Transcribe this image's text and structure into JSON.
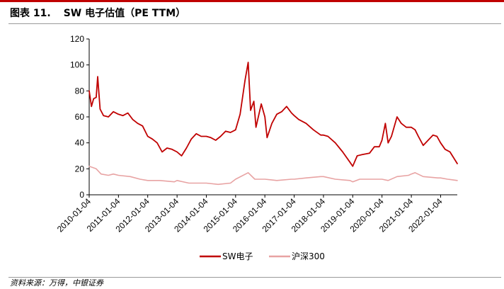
{
  "figure": {
    "label": "图表 11.",
    "title": "SW 电子估值（PE TTM）",
    "source": "资料来源：万得，中银证券"
  },
  "colors": {
    "accent": "#c00000",
    "sw_series": "#c00000",
    "hs300_series": "#e8a3a3",
    "axis": "#000000"
  },
  "chart_data": {
    "type": "line",
    "title": "SW 电子估值（PE TTM）",
    "xlabel": "",
    "ylabel": "",
    "ylim": [
      0,
      120
    ],
    "yticks": [
      0,
      20,
      40,
      60,
      80,
      100,
      120
    ],
    "xlim": [
      "2010-01-04",
      "2022-07-31"
    ],
    "xticks": [
      "2010-01-04",
      "2011-01-04",
      "2012-01-04",
      "2013-01-04",
      "2014-01-04",
      "2015-01-04",
      "2016-01-04",
      "2017-01-04",
      "2018-01-04",
      "2019-01-04",
      "2020-01-04",
      "2021-01-04",
      "2022-01-04"
    ],
    "grid": false,
    "legend_position": "bottom-center",
    "series": [
      {
        "name": "SW电子",
        "color": "#c00000",
        "points": [
          [
            "2010-01-04",
            80
          ],
          [
            "2010-02-01",
            68
          ],
          [
            "2010-03-01",
            74
          ],
          [
            "2010-04-01",
            75
          ],
          [
            "2010-04-20",
            91
          ],
          [
            "2010-05-20",
            66
          ],
          [
            "2010-07-01",
            61
          ],
          [
            "2010-09-01",
            60
          ],
          [
            "2010-11-01",
            64
          ],
          [
            "2011-01-04",
            62
          ],
          [
            "2011-03-01",
            61
          ],
          [
            "2011-05-01",
            63
          ],
          [
            "2011-07-01",
            58
          ],
          [
            "2011-09-01",
            55
          ],
          [
            "2011-11-01",
            53
          ],
          [
            "2012-01-04",
            45
          ],
          [
            "2012-03-01",
            43
          ],
          [
            "2012-05-01",
            40
          ],
          [
            "2012-07-01",
            33
          ],
          [
            "2012-09-01",
            36
          ],
          [
            "2012-11-01",
            35
          ],
          [
            "2013-01-04",
            33
          ],
          [
            "2013-03-01",
            30
          ],
          [
            "2013-05-01",
            36
          ],
          [
            "2013-07-01",
            43
          ],
          [
            "2013-09-01",
            47
          ],
          [
            "2013-11-01",
            45
          ],
          [
            "2014-01-04",
            45
          ],
          [
            "2014-03-01",
            44
          ],
          [
            "2014-05-01",
            42
          ],
          [
            "2014-07-01",
            45
          ],
          [
            "2014-09-01",
            49
          ],
          [
            "2014-11-01",
            48
          ],
          [
            "2015-01-04",
            50
          ],
          [
            "2015-03-01",
            62
          ],
          [
            "2015-05-01",
            88
          ],
          [
            "2015-06-10",
            102
          ],
          [
            "2015-07-10",
            65
          ],
          [
            "2015-08-20",
            72
          ],
          [
            "2015-09-15",
            52
          ],
          [
            "2015-11-20",
            70
          ],
          [
            "2016-01-04",
            60
          ],
          [
            "2016-02-01",
            44
          ],
          [
            "2016-04-01",
            55
          ],
          [
            "2016-06-01",
            62
          ],
          [
            "2016-08-01",
            64
          ],
          [
            "2016-10-01",
            68
          ],
          [
            "2016-12-01",
            63
          ],
          [
            "2017-01-04",
            61
          ],
          [
            "2017-03-01",
            58
          ],
          [
            "2017-06-01",
            55
          ],
          [
            "2017-09-01",
            50
          ],
          [
            "2017-12-01",
            46
          ],
          [
            "2018-01-04",
            46
          ],
          [
            "2018-03-01",
            45
          ],
          [
            "2018-06-01",
            40
          ],
          [
            "2018-09-01",
            33
          ],
          [
            "2018-12-01",
            25
          ],
          [
            "2019-01-04",
            22
          ],
          [
            "2019-03-01",
            30
          ],
          [
            "2019-05-01",
            31
          ],
          [
            "2019-08-01",
            32
          ],
          [
            "2019-10-01",
            37
          ],
          [
            "2019-12-01",
            37
          ],
          [
            "2020-01-04",
            42
          ],
          [
            "2020-02-15",
            55
          ],
          [
            "2020-03-20",
            40
          ],
          [
            "2020-05-01",
            45
          ],
          [
            "2020-07-10",
            60
          ],
          [
            "2020-09-01",
            55
          ],
          [
            "2020-11-01",
            52
          ],
          [
            "2021-01-04",
            52
          ],
          [
            "2021-02-20",
            50
          ],
          [
            "2021-04-01",
            45
          ],
          [
            "2021-06-01",
            38
          ],
          [
            "2021-08-01",
            42
          ],
          [
            "2021-10-01",
            46
          ],
          [
            "2021-11-20",
            45
          ],
          [
            "2022-01-04",
            40
          ],
          [
            "2022-03-01",
            35
          ],
          [
            "2022-05-01",
            33
          ],
          [
            "2022-07-31",
            24
          ]
        ]
      },
      {
        "name": "沪深300",
        "color": "#e8a3a3",
        "points": [
          [
            "2010-01-04",
            22
          ],
          [
            "2010-04-01",
            20
          ],
          [
            "2010-06-01",
            16
          ],
          [
            "2010-09-01",
            15
          ],
          [
            "2010-11-01",
            16
          ],
          [
            "2011-01-04",
            15
          ],
          [
            "2011-06-01",
            14
          ],
          [
            "2011-10-01",
            12
          ],
          [
            "2012-01-04",
            11
          ],
          [
            "2012-06-01",
            11
          ],
          [
            "2012-12-01",
            10
          ],
          [
            "2013-01-04",
            11
          ],
          [
            "2013-06-01",
            9
          ],
          [
            "2013-12-01",
            9
          ],
          [
            "2014-01-04",
            9
          ],
          [
            "2014-06-01",
            8
          ],
          [
            "2014-11-01",
            9
          ],
          [
            "2015-01-04",
            12
          ],
          [
            "2015-06-10",
            17
          ],
          [
            "2015-09-01",
            12
          ],
          [
            "2016-01-04",
            12
          ],
          [
            "2016-06-01",
            11
          ],
          [
            "2016-12-01",
            12
          ],
          [
            "2017-01-04",
            12
          ],
          [
            "2017-06-01",
            13
          ],
          [
            "2017-12-01",
            14
          ],
          [
            "2018-01-04",
            14
          ],
          [
            "2018-06-01",
            12
          ],
          [
            "2018-12-01",
            11
          ],
          [
            "2019-01-04",
            10
          ],
          [
            "2019-04-01",
            12
          ],
          [
            "2019-12-01",
            12
          ],
          [
            "2020-01-04",
            12
          ],
          [
            "2020-03-20",
            11
          ],
          [
            "2020-07-10",
            14
          ],
          [
            "2020-12-01",
            15
          ],
          [
            "2021-01-04",
            16
          ],
          [
            "2021-02-20",
            17
          ],
          [
            "2021-06-01",
            14
          ],
          [
            "2021-12-01",
            13
          ],
          [
            "2022-01-04",
            13
          ],
          [
            "2022-04-01",
            12
          ],
          [
            "2022-07-31",
            11
          ]
        ]
      }
    ]
  }
}
